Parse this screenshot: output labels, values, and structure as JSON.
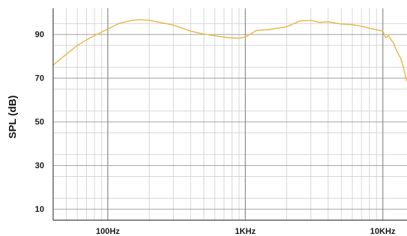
{
  "chart_data": {
    "type": "line",
    "title": "",
    "xlabel": "",
    "ylabel": "SPL (dB)",
    "x_scale": "log",
    "xlim": [
      40,
      15000
    ],
    "ylim": [
      5,
      102
    ],
    "grid": true,
    "x_ticks": [
      {
        "value": 100,
        "label": "100Hz"
      },
      {
        "value": 1000,
        "label": "1KHz"
      },
      {
        "value": 10000,
        "label": "10KHz"
      }
    ],
    "y_ticks": [
      {
        "value": 10,
        "label": "10"
      },
      {
        "value": 30,
        "label": "30"
      },
      {
        "value": 50,
        "label": "50"
      },
      {
        "value": 70,
        "label": "70"
      },
      {
        "value": 90,
        "label": "90"
      }
    ],
    "series": [
      {
        "color": "#e8b84a",
        "x": [
          40,
          50,
          60,
          70,
          80,
          100,
          120,
          150,
          170,
          200,
          250,
          300,
          400,
          500,
          600,
          700,
          800,
          900,
          1000,
          1100,
          1200,
          1500,
          2000,
          2500,
          3000,
          3500,
          4000,
          5000,
          6000,
          7000,
          8000,
          9000,
          10000,
          10500,
          11000,
          11500,
          12000,
          12500,
          13000,
          13500,
          14000,
          14500,
          15000
        ],
        "y": [
          76,
          81,
          85,
          87.5,
          89.5,
          92.5,
          95,
          96.5,
          96.8,
          96.5,
          95.3,
          94.3,
          91.5,
          90.2,
          89.4,
          88.8,
          88.4,
          88.3,
          88.8,
          90.3,
          91.8,
          92.3,
          93.5,
          96.2,
          96.5,
          95.5,
          95.8,
          94.8,
          94.5,
          93.8,
          92.8,
          92.2,
          91.5,
          88.5,
          89.5,
          87.5,
          86,
          83,
          81,
          79,
          76,
          72,
          68.5
        ]
      }
    ]
  }
}
